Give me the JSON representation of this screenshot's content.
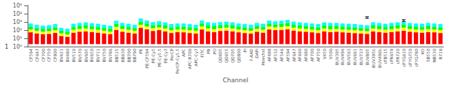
{
  "chart_data": {
    "type": "bar",
    "xlabel": "Channel",
    "categories": [
      "CF594",
      "CF647",
      "CF700",
      "CF750",
      "CF800",
      "BV421",
      "BV480",
      "BV510",
      "BV570",
      "BV605",
      "BV650",
      "BV711",
      "BV750",
      "BV786",
      "BB515",
      "BB630",
      "BB700",
      "BB790",
      "PE",
      "PE-CF594",
      "PE-Cy5",
      "PE-Cy5.5",
      "PE-Cy7",
      "PerCP",
      "PerCP-Cy5.5",
      "APC",
      "APC-R700",
      "APC-Cy7",
      "FITC",
      "PB",
      "PO",
      "QD605",
      "QD655",
      "QD705",
      "QD800",
      "PI",
      "7-AAD",
      "DAPI",
      "Hoechst",
      "AF488",
      "AF532",
      "AF546",
      "AF594",
      "AF647",
      "AF660",
      "AF680",
      "AF700",
      "AF750",
      "V450",
      "V500",
      "BUV395",
      "BUV496",
      "BUV563",
      "BUV661",
      "BUV737",
      "BUV805",
      "BUV395b",
      "BUV496b",
      "cFB515",
      "cFR659",
      "cFR720",
      "cFYG610",
      "cFYG750",
      "cFYG780",
      "KO",
      "SB550",
      "NB530",
      "R718"
    ],
    "base": 2,
    "series": [
      {
        "color": "#ff0000",
        "values": [
          55,
          40,
          32,
          36,
          46,
          20,
          16,
          50,
          65,
          72,
          60,
          50,
          40,
          32,
          110,
          65,
          50,
          40,
          200,
          130,
          80,
          100,
          72,
          45,
          55,
          55,
          45,
          40,
          120,
          72,
          60,
          80,
          90,
          72,
          55,
          45,
          38,
          65,
          50,
          120,
          100,
          110,
          130,
          90,
          72,
          65,
          55,
          45,
          72,
          60,
          65,
          55,
          50,
          45,
          40,
          36,
          72,
          60,
          50,
          60,
          72,
          85,
          65,
          55,
          50,
          60,
          55,
          45
        ]
      },
      {
        "color": "#ffff00",
        "values": [
          120,
          85,
          65,
          75,
          100,
          40,
          30,
          110,
          140,
          160,
          130,
          110,
          85,
          65,
          250,
          140,
          110,
          85,
          450,
          280,
          175,
          220,
          160,
          100,
          120,
          120,
          100,
          85,
          280,
          160,
          130,
          175,
          200,
          160,
          120,
          100,
          85,
          140,
          110,
          280,
          220,
          250,
          300,
          200,
          160,
          140,
          120,
          100,
          160,
          130,
          140,
          120,
          110,
          100,
          85,
          75,
          160,
          130,
          110,
          130,
          160,
          200,
          140,
          120,
          110,
          130,
          120,
          100
        ]
      },
      {
        "color": "#00ff00",
        "values": [
          280,
          190,
          150,
          170,
          230,
          85,
          65,
          250,
          320,
          380,
          300,
          250,
          190,
          150,
          600,
          320,
          250,
          190,
          1100,
          650,
          400,
          520,
          380,
          230,
          280,
          280,
          230,
          190,
          650,
          380,
          320,
          400,
          480,
          380,
          280,
          230,
          190,
          320,
          250,
          650,
          520,
          600,
          750,
          480,
          380,
          320,
          280,
          230,
          380,
          320,
          320,
          280,
          250,
          230,
          190,
          170,
          380,
          320,
          250,
          320,
          380,
          480,
          320,
          280,
          250,
          320,
          280,
          230
        ]
      },
      {
        "color": "#00ffff",
        "values": [
          650,
          450,
          350,
          400,
          550,
          190,
          150,
          600,
          750,
          900,
          700,
          600,
          450,
          350,
          1400,
          750,
          600,
          450,
          2600,
          1500,
          950,
          1200,
          900,
          550,
          650,
          650,
          550,
          450,
          1500,
          900,
          750,
          950,
          1100,
          900,
          650,
          550,
          450,
          750,
          600,
          1500,
          1200,
          1400,
          1750,
          1100,
          900,
          750,
          650,
          550,
          900,
          750,
          750,
          650,
          600,
          550,
          450,
          400,
          900,
          750,
          600,
          750,
          900,
          1100,
          750,
          650,
          600,
          750,
          650,
          550
        ]
      }
    ],
    "log": "y",
    "ylim": [
      1,
      100000
    ],
    "yticks": [
      {
        "value": 1,
        "label": "10⁰"
      },
      {
        "value": 10,
        "label": "10¹"
      },
      {
        "value": 100,
        "label": "10²"
      },
      {
        "value": 1000,
        "label": "10³"
      },
      {
        "value": 10000,
        "label": "10⁴"
      },
      {
        "value": 100000,
        "label": "10⁵"
      }
    ],
    "grid": false,
    "errorbars": [
      {
        "category": "BUV805",
        "value": 3500,
        "err": 800,
        "color": "#000000"
      },
      {
        "category": "cFYG610",
        "value": 1500,
        "err": 350,
        "color": "#000000"
      }
    ],
    "annotations": [
      {
        "text": "1",
        "y": 1
      }
    ]
  }
}
